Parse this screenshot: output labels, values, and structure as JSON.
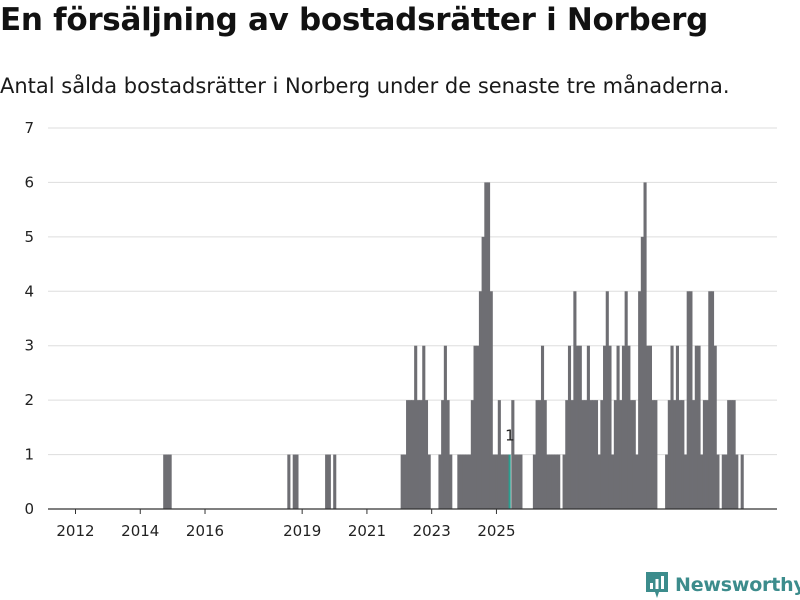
{
  "title": "En försäljning av bostadsrätter i Norberg",
  "subtitle": "Antal sålda bostadsrätter i Norberg under de senaste tre månaderna.",
  "brand": {
    "name": "Newsworthy",
    "icon": "newsworthy-logo-icon",
    "color": "#3c8c8c"
  },
  "colors": {
    "bar": "#6e6e73",
    "highlight": "#2a9d8f",
    "grid": "#dddddd",
    "axis": "#333333"
  },
  "chart_data": {
    "type": "bar",
    "title": "En försäljning av bostadsrätter i Norberg",
    "xlabel": "",
    "ylabel": "",
    "ylim": [
      0,
      7
    ],
    "y_ticks": [
      "0",
      "1",
      "2",
      "3",
      "4",
      "5",
      "6",
      "7"
    ],
    "x_ticks": [
      {
        "label": "2012",
        "year": 2012
      },
      {
        "label": "2014",
        "year": 2014
      },
      {
        "label": "2016",
        "year": 2016
      },
      {
        "label": "2019",
        "year": 2019
      },
      {
        "label": "2021",
        "year": 2021
      },
      {
        "label": "2023",
        "year": 2023
      },
      {
        "label": "2025",
        "year": 2025
      }
    ],
    "x_start": {
      "year": 2011,
      "month": 8
    },
    "values": [
      0,
      0,
      0,
      0,
      0,
      0,
      0,
      0,
      0,
      0,
      0,
      0,
      0,
      0,
      0,
      0,
      0,
      0,
      0,
      0,
      0,
      0,
      0,
      0,
      0,
      0,
      0,
      0,
      0,
      0,
      0,
      0,
      0,
      0,
      0,
      0,
      0,
      0,
      1,
      1,
      1,
      0,
      0,
      0,
      0,
      0,
      0,
      0,
      0,
      0,
      0,
      0,
      0,
      0,
      0,
      0,
      0,
      0,
      0,
      0,
      0,
      0,
      0,
      0,
      0,
      0,
      0,
      0,
      0,
      0,
      0,
      0,
      0,
      0,
      0,
      0,
      0,
      0,
      0,
      0,
      0,
      0,
      0,
      0,
      1,
      0,
      1,
      1,
      0,
      0,
      0,
      0,
      0,
      0,
      0,
      0,
      0,
      0,
      1,
      1,
      0,
      1,
      0,
      0,
      0,
      0,
      0,
      0,
      0,
      0,
      0,
      0,
      0,
      0,
      0,
      0,
      0,
      0,
      0,
      0,
      0,
      0,
      0,
      0,
      0,
      0,
      1,
      1,
      2,
      2,
      2,
      3,
      2,
      2,
      3,
      2,
      1,
      0,
      0,
      0,
      1,
      2,
      3,
      2,
      1,
      0,
      0,
      1,
      1,
      1,
      1,
      1,
      2,
      3,
      3,
      4,
      5,
      6,
      6,
      4,
      1,
      1,
      2,
      1,
      1,
      1,
      1,
      2,
      1,
      1,
      1,
      0,
      0,
      0,
      0,
      1,
      2,
      2,
      3,
      2,
      1,
      1,
      1,
      1,
      1,
      0,
      1,
      2,
      3,
      2,
      4,
      3,
      3,
      2,
      2,
      3,
      2,
      2,
      2,
      1,
      2,
      3,
      4,
      3,
      1,
      2,
      3,
      2,
      3,
      4,
      3,
      2,
      2,
      1,
      4,
      5,
      6,
      3,
      3,
      2,
      2,
      0,
      0,
      0,
      1,
      2,
      3,
      2,
      3,
      2,
      2,
      1,
      4,
      4,
      2,
      3,
      3,
      1,
      2,
      2,
      4,
      4,
      3,
      1,
      0,
      1,
      1,
      2,
      2,
      2,
      1,
      0,
      1
    ],
    "highlight": {
      "index": 166,
      "label": "1"
    }
  }
}
